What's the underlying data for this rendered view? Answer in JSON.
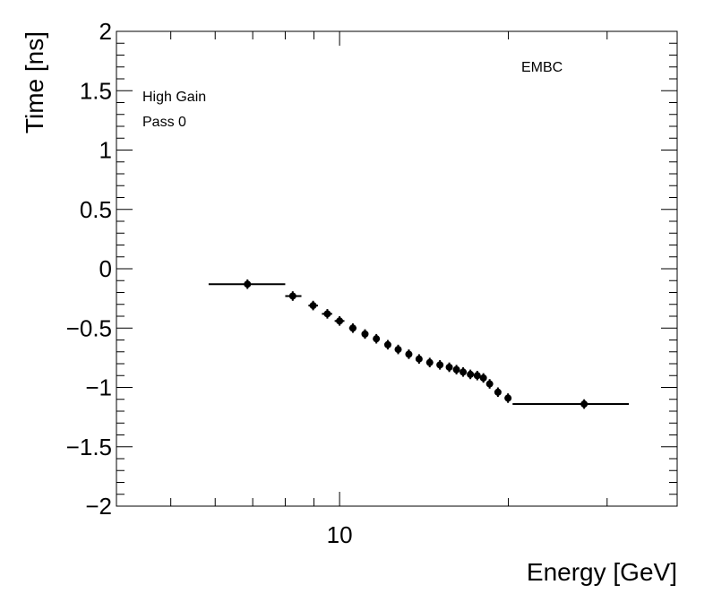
{
  "chart_data": {
    "type": "scatter",
    "title": "",
    "xlabel": "Energy [GeV]",
    "ylabel": "Time [ns]",
    "x_scale": "log",
    "xlim": [
      4,
      40
    ],
    "ylim": [
      -2,
      2
    ],
    "grid": false,
    "x_tick_labels": [
      {
        "value": 10,
        "label": "10"
      }
    ],
    "y_ticks": [
      {
        "value": 2,
        "label": "2"
      },
      {
        "value": 1.5,
        "label": "1.5"
      },
      {
        "value": 1,
        "label": "1"
      },
      {
        "value": 0.5,
        "label": "0.5"
      },
      {
        "value": 0,
        "label": "0"
      },
      {
        "value": -0.5,
        "label": "−0.5"
      },
      {
        "value": -1,
        "label": "−1"
      },
      {
        "value": -1.5,
        "label": "−1.5"
      },
      {
        "value": -2,
        "label": "−2"
      }
    ],
    "annotations": {
      "detector": "EMBC",
      "gain": "High Gain",
      "pass": "Pass 0"
    },
    "points": [
      {
        "x": 6.85,
        "y": -0.13,
        "xlo": 5.84,
        "xhi": 8.0
      },
      {
        "x": 8.25,
        "y": -0.23,
        "xlo": 8.0,
        "xhi": 8.55
      },
      {
        "x": 8.97,
        "y": -0.31,
        "xlo": 8.8,
        "xhi": 9.15
      },
      {
        "x": 9.51,
        "y": -0.38,
        "xlo": 9.3,
        "xhi": 9.7
      },
      {
        "x": 10.0,
        "y": -0.44,
        "xlo": 9.8,
        "xhi": 10.2
      },
      {
        "x": 10.56,
        "y": -0.5,
        "xlo": 10.4,
        "xhi": 10.72
      },
      {
        "x": 11.1,
        "y": -0.55,
        "xlo": 10.95,
        "xhi": 11.25
      },
      {
        "x": 11.63,
        "y": -0.59,
        "xlo": 11.5,
        "xhi": 11.78
      },
      {
        "x": 12.19,
        "y": -0.64,
        "xlo": 12.05,
        "xhi": 12.33
      },
      {
        "x": 12.72,
        "y": -0.68,
        "xlo": 12.6,
        "xhi": 12.85
      },
      {
        "x": 13.29,
        "y": -0.72,
        "xlo": 13.17,
        "xhi": 13.42
      },
      {
        "x": 13.86,
        "y": -0.76,
        "xlo": 13.75,
        "xhi": 13.98
      },
      {
        "x": 14.48,
        "y": -0.79,
        "xlo": 14.37,
        "xhi": 14.6
      },
      {
        "x": 15.1,
        "y": -0.81,
        "xlo": 14.99,
        "xhi": 15.22
      },
      {
        "x": 15.69,
        "y": -0.83,
        "xlo": 15.6,
        "xhi": 15.8
      },
      {
        "x": 16.16,
        "y": -0.85,
        "xlo": 16.08,
        "xhi": 16.26
      },
      {
        "x": 16.61,
        "y": -0.87,
        "xlo": 16.52,
        "xhi": 16.7
      },
      {
        "x": 17.11,
        "y": -0.89,
        "xlo": 17.0,
        "xhi": 17.2
      },
      {
        "x": 17.6,
        "y": -0.9,
        "xlo": 17.48,
        "xhi": 17.7
      },
      {
        "x": 18.05,
        "y": -0.92,
        "xlo": 17.96,
        "xhi": 18.14
      },
      {
        "x": 18.52,
        "y": -0.97,
        "xlo": 18.42,
        "xhi": 18.62
      },
      {
        "x": 19.16,
        "y": -1.04,
        "xlo": 19.05,
        "xhi": 19.26
      },
      {
        "x": 19.97,
        "y": -1.09,
        "xlo": 19.8,
        "xhi": 20.1
      },
      {
        "x": 27.3,
        "y": -1.14,
        "xlo": 20.35,
        "xhi": 32.8
      }
    ],
    "yerr": 0.04,
    "marker_color": "#000000"
  }
}
